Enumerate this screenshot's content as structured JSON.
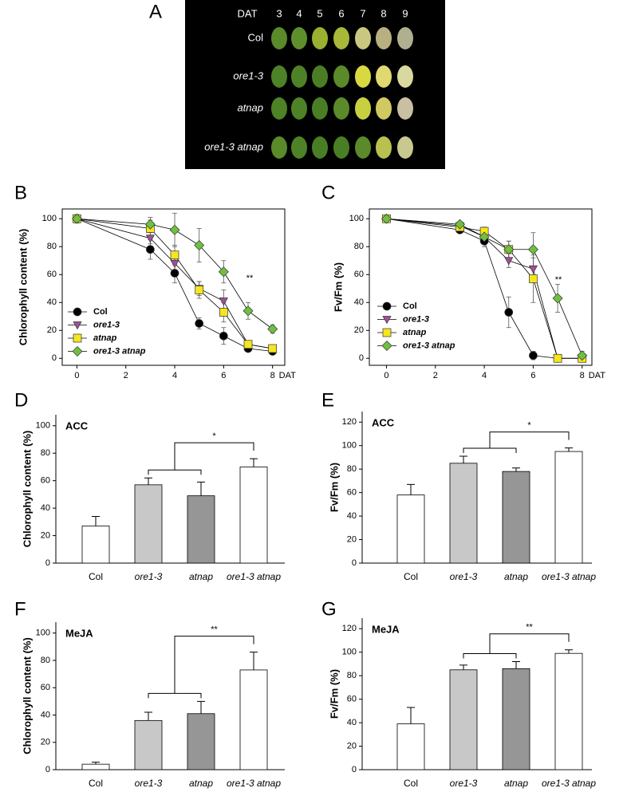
{
  "panel_a": {
    "label": "A",
    "header": "DAT",
    "days": [
      "3",
      "4",
      "5",
      "6",
      "7",
      "8",
      "9"
    ],
    "genotypes": [
      "Col",
      "ore1-3",
      "atnap",
      "ore1-3 atnap"
    ]
  },
  "chart_data": [
    {
      "type": "line",
      "label": "B",
      "ylabel": "Chlorophyll content (%)",
      "xlabel": "DAT",
      "annotation": "**",
      "x": [
        0,
        3,
        4,
        5,
        6,
        7,
        8
      ],
      "xlim": [
        -0.6,
        8.5
      ],
      "xticks": [
        0,
        2,
        4,
        6,
        8
      ],
      "ylim": [
        -5,
        107
      ],
      "yticks": [
        0,
        20,
        40,
        60,
        80,
        100
      ],
      "legend": "lower left",
      "series": [
        {
          "name": "Col",
          "color": "#000000",
          "marker": "circle",
          "values": [
            100,
            78,
            61,
            25,
            16,
            7,
            5
          ],
          "errors": [
            3,
            7,
            7,
            4,
            6,
            2,
            2
          ]
        },
        {
          "name": "ore1-3",
          "color": "#a05095",
          "marker": "triangle-down",
          "values": [
            100,
            86,
            68,
            50,
            41,
            10,
            7
          ],
          "errors": [
            3,
            4,
            6,
            5,
            8,
            2,
            2
          ]
        },
        {
          "name": "atnap",
          "color": "#f5e61e",
          "marker": "square",
          "values": [
            100,
            93,
            74,
            49,
            33,
            10,
            7
          ],
          "errors": [
            3,
            6,
            7,
            6,
            7,
            2,
            2
          ]
        },
        {
          "name": "ore1-3 atnap",
          "color": "#70c040",
          "marker": "diamond",
          "values": [
            100,
            96,
            92,
            81,
            62,
            34,
            21
          ],
          "errors": [
            3,
            5,
            12,
            12,
            8,
            6,
            3
          ]
        }
      ]
    },
    {
      "type": "line",
      "label": "C",
      "ylabel": "Fv/Fm (%)",
      "xlabel": "DAT",
      "annotation": "**",
      "x": [
        0,
        3,
        4,
        5,
        6,
        7,
        8
      ],
      "xlim": [
        -0.7,
        8.4
      ],
      "xticks": [
        0,
        2,
        4,
        6,
        8
      ],
      "ylim": [
        -5,
        107
      ],
      "yticks": [
        0,
        20,
        40,
        60,
        80,
        100
      ],
      "legend": "lower left",
      "series": [
        {
          "name": "Col",
          "color": "#000000",
          "marker": "circle",
          "values": [
            100,
            92,
            84,
            33,
            2,
            0,
            0
          ],
          "errors": [
            1,
            2,
            4,
            11,
            3,
            0,
            0
          ]
        },
        {
          "name": "ore1-3",
          "color": "#a05095",
          "marker": "triangle-down",
          "values": [
            100,
            95,
            87,
            70,
            64,
            0,
            0
          ],
          "errors": [
            1,
            2,
            3,
            5,
            8,
            0,
            0
          ]
        },
        {
          "name": "atnap",
          "color": "#f5e61e",
          "marker": "square",
          "values": [
            100,
            94,
            91,
            78,
            57,
            0,
            0
          ],
          "errors": [
            1,
            2,
            3,
            6,
            17,
            0,
            0
          ]
        },
        {
          "name": "ore1-3 atnap",
          "color": "#70c040",
          "marker": "diamond",
          "values": [
            100,
            96,
            87,
            78,
            78,
            43,
            2
          ],
          "errors": [
            1,
            2,
            4,
            6,
            12,
            10,
            3
          ]
        }
      ]
    },
    {
      "type": "bar",
      "label": "D",
      "title": "ACC",
      "ylabel": "Chlorophyll content (%)",
      "annotation": "*",
      "categories": [
        "Col",
        "ore1-3",
        "atnap",
        "ore1-3 atnap"
      ],
      "values": [
        27,
        57,
        49,
        70
      ],
      "errors": [
        7,
        5,
        10,
        6
      ],
      "colors": [
        "#ffffff",
        "#c8c8c8",
        "#969696",
        "#ffffff"
      ],
      "ylim": [
        0,
        108
      ],
      "yticks": [
        0,
        20,
        40,
        60,
        80,
        100
      ]
    },
    {
      "type": "bar",
      "label": "E",
      "title": "ACC",
      "ylabel": "Fv/Fm (%)",
      "annotation": "*",
      "categories": [
        "Col",
        "ore1-3",
        "atnap",
        "ore1-3 atnap"
      ],
      "values": [
        58,
        85,
        78,
        95
      ],
      "errors": [
        9,
        6,
        3,
        3
      ],
      "colors": [
        "#ffffff",
        "#c8c8c8",
        "#969696",
        "#ffffff"
      ],
      "ylim": [
        0,
        129
      ],
      "yticks": [
        0,
        20,
        40,
        60,
        80,
        100,
        120
      ]
    },
    {
      "type": "bar",
      "label": "F",
      "title": "MeJA",
      "ylabel": "Chlorophyll content (%)",
      "annotation": "**",
      "categories": [
        "Col",
        "ore1-3",
        "atnap",
        "ore1-3 atnap"
      ],
      "values": [
        4,
        36,
        41,
        73
      ],
      "errors": [
        1.5,
        6,
        9,
        13
      ],
      "colors": [
        "#ffffff",
        "#c8c8c8",
        "#969696",
        "#ffffff"
      ],
      "ylim": [
        0,
        108
      ],
      "yticks": [
        0,
        20,
        40,
        60,
        80,
        100
      ]
    },
    {
      "type": "bar",
      "label": "G",
      "title": "MeJA",
      "ylabel": "Fv/Fm (%)",
      "annotation": "**",
      "categories": [
        "Col",
        "ore1-3",
        "atnap",
        "ore1-3 atnap"
      ],
      "values": [
        39,
        85,
        86,
        99
      ],
      "errors": [
        14,
        4,
        6,
        3
      ],
      "colors": [
        "#ffffff",
        "#c8c8c8",
        "#969696",
        "#ffffff"
      ],
      "ylim": [
        0,
        129
      ],
      "yticks": [
        0,
        20,
        40,
        60,
        80,
        100,
        120
      ]
    }
  ]
}
